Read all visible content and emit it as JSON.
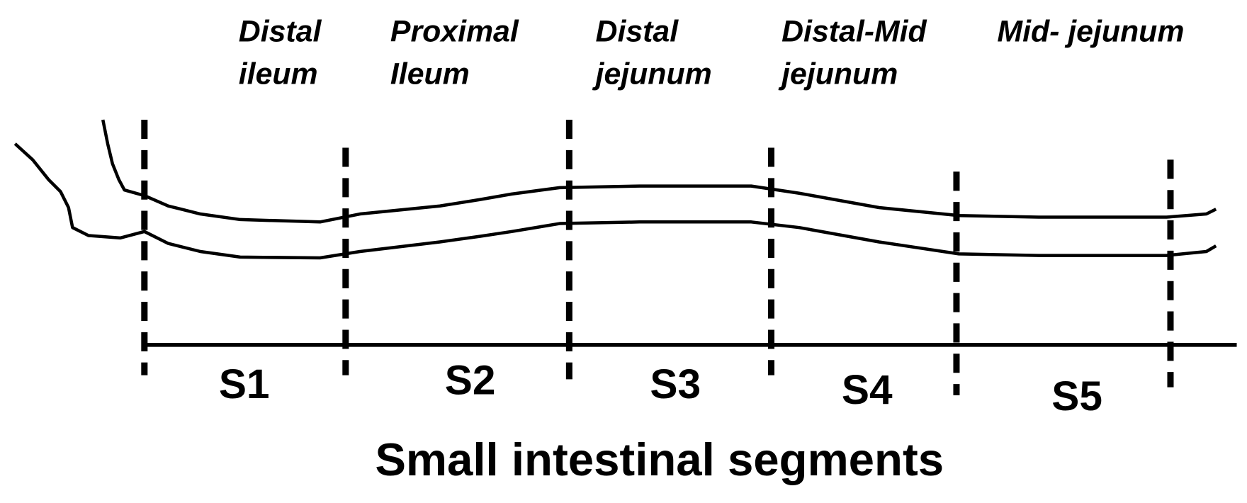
{
  "regions": [
    {
      "label_lines": [
        "Distal",
        "ileum"
      ]
    },
    {
      "label_lines": [
        "Proximal",
        "Ileum"
      ]
    },
    {
      "label_lines": [
        "Distal",
        "jejunum"
      ]
    },
    {
      "label_lines": [
        "Distal-Mid",
        "jejunum"
      ]
    },
    {
      "label_lines": [
        "Mid- jejunum"
      ]
    }
  ],
  "segments": [
    "S1",
    "S2",
    "S3",
    "S4",
    "S5"
  ],
  "axis_title": "Small intestinal segments"
}
